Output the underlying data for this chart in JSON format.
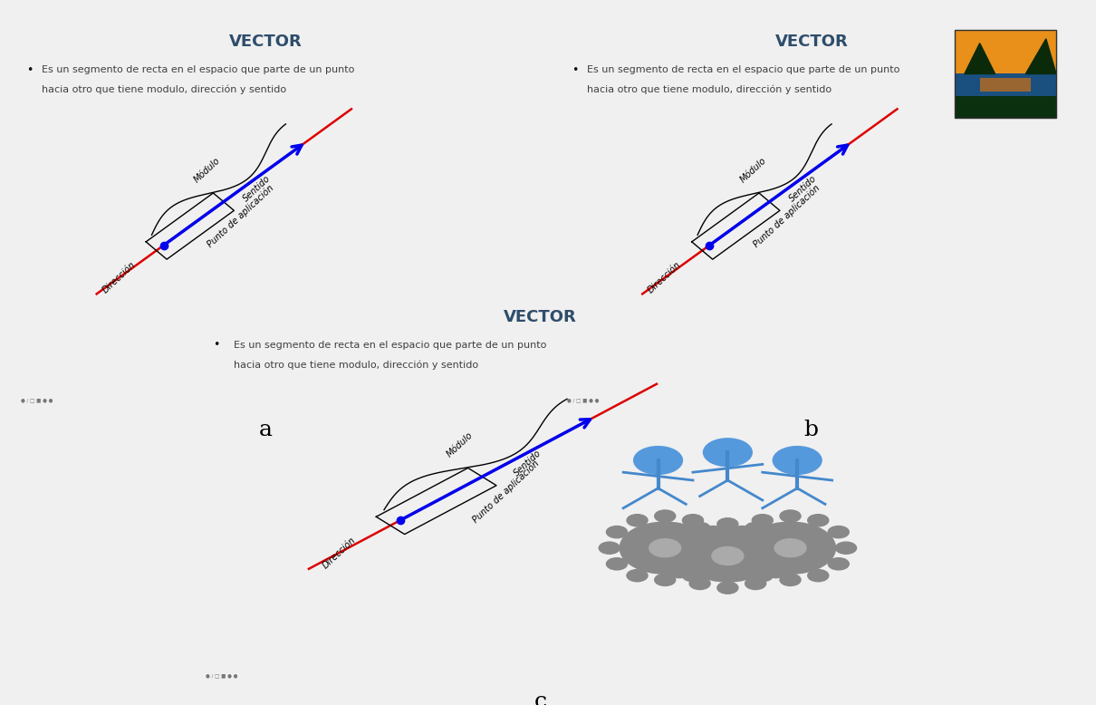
{
  "title": "VECTOR",
  "title_color": "#2E4D6B",
  "bullet_line1": "Es un segmento de recta en el espacio que parte de un punto",
  "bullet_line2": "hacia otro que tiene modulo, dirección y sentido",
  "label_modulo": "Módulo",
  "label_sentido": "Sentido",
  "label_direccion": "Dirección",
  "label_punto": "Punto de aplicación",
  "bg_color": "#F0F0F0",
  "slide_bg": "#FFFFFF",
  "border_color": "#222222",
  "vector_color": "#0000EE",
  "red_line_color": "#DD0000",
  "black_color": "#111111",
  "panel_a_label": "a",
  "panel_b_label": "b",
  "panel_c_label": "c"
}
